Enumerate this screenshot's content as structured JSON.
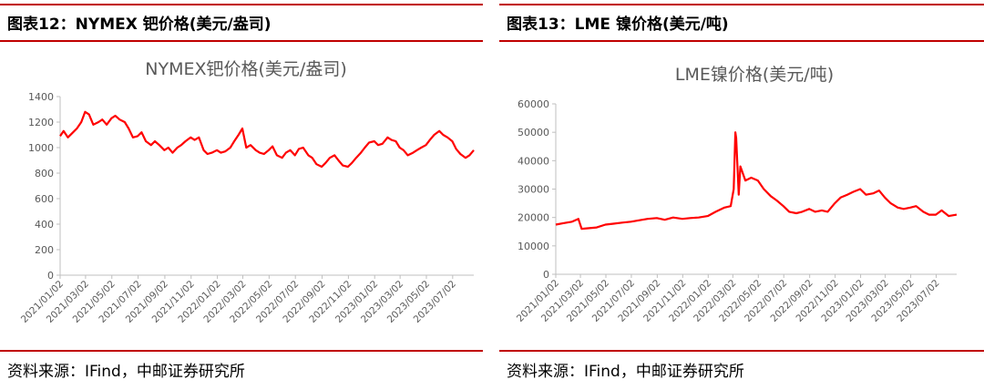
{
  "panels": [
    {
      "figure_title": "图表12：NYMEX 钯价格(美元/盎司)",
      "source": "资料来源：IFind，中邮证券研究所"
    },
    {
      "figure_title": "图表13：LME 镍价格(美元/吨)",
      "source": "资料来源：IFind，中邮证券研究所"
    }
  ],
  "chart_data": [
    {
      "type": "line",
      "title": "NYMEX钯价格(美元/盎司)",
      "color": "#ff0000",
      "ylim": [
        0,
        1400
      ],
      "yticks": [
        0,
        200,
        400,
        600,
        800,
        1000,
        1200,
        1400
      ],
      "xlim": [
        "2021-01-02",
        "2023-08-20"
      ],
      "xticks": [
        "2021/01/02",
        "2021/03/02",
        "2021/05/02",
        "2021/07/02",
        "2021/09/02",
        "2021/11/02",
        "2022/01/02",
        "2022/03/02",
        "2022/05/02",
        "2022/07/02",
        "2022/09/02",
        "2022/11/02",
        "2023/01/02",
        "2023/03/02",
        "2023/05/02",
        "2023/07/02"
      ],
      "series": [
        {
          "x": [
            "2021-01-02",
            "2021-01-10",
            "2021-01-20",
            "2021-02-01",
            "2021-02-10",
            "2021-02-20",
            "2021-03-01",
            "2021-03-10",
            "2021-03-20",
            "2021-04-01",
            "2021-04-10",
            "2021-04-20",
            "2021-05-01",
            "2021-05-10",
            "2021-05-20",
            "2021-06-01",
            "2021-06-10",
            "2021-06-20",
            "2021-07-01",
            "2021-07-10",
            "2021-07-20",
            "2021-08-01",
            "2021-08-10",
            "2021-08-20",
            "2021-09-01",
            "2021-09-10",
            "2021-09-20",
            "2021-10-01",
            "2021-10-10",
            "2021-10-20",
            "2021-11-01",
            "2021-11-10",
            "2021-11-20",
            "2021-12-01",
            "2021-12-10",
            "2021-12-20",
            "2022-01-01",
            "2022-01-10",
            "2022-01-20",
            "2022-02-01",
            "2022-02-10",
            "2022-02-20",
            "2022-03-01",
            "2022-03-10",
            "2022-03-20",
            "2022-04-01",
            "2022-04-10",
            "2022-04-20",
            "2022-05-01",
            "2022-05-10",
            "2022-05-20",
            "2022-06-01",
            "2022-06-10",
            "2022-06-20",
            "2022-07-01",
            "2022-07-10",
            "2022-07-20",
            "2022-08-01",
            "2022-08-10",
            "2022-08-20",
            "2022-09-01",
            "2022-09-10",
            "2022-09-20",
            "2022-10-01",
            "2022-10-10",
            "2022-10-20",
            "2022-11-01",
            "2022-11-10",
            "2022-11-20",
            "2022-12-01",
            "2022-12-10",
            "2022-12-20",
            "2023-01-01",
            "2023-01-10",
            "2023-01-20",
            "2023-02-01",
            "2023-02-10",
            "2023-02-20",
            "2023-03-01",
            "2023-03-10",
            "2023-03-20",
            "2023-04-01",
            "2023-04-10",
            "2023-04-20",
            "2023-05-01",
            "2023-05-10",
            "2023-05-20",
            "2023-06-01",
            "2023-06-10",
            "2023-06-20",
            "2023-07-01",
            "2023-07-10",
            "2023-07-20",
            "2023-08-01",
            "2023-08-10",
            "2023-08-20"
          ],
          "y": [
            1090,
            1130,
            1080,
            1120,
            1150,
            1200,
            1280,
            1260,
            1180,
            1200,
            1220,
            1180,
            1230,
            1250,
            1220,
            1200,
            1150,
            1080,
            1090,
            1120,
            1050,
            1020,
            1050,
            1020,
            980,
            1000,
            960,
            1000,
            1020,
            1050,
            1080,
            1060,
            1080,
            980,
            950,
            960,
            980,
            960,
            970,
            1000,
            1050,
            1100,
            1150,
            1000,
            1020,
            980,
            960,
            950,
            980,
            1010,
            940,
            920,
            960,
            980,
            940,
            990,
            1000,
            940,
            920,
            870,
            850,
            880,
            920,
            940,
            900,
            860,
            850,
            880,
            920,
            960,
            1000,
            1040,
            1050,
            1020,
            1030,
            1080,
            1060,
            1050,
            1000,
            980,
            940,
            960,
            980,
            1000,
            1020,
            1060,
            1100,
            1130,
            1100,
            1080,
            1050,
            990,
            950,
            920,
            940,
            980
          ]
        }
      ]
    },
    {
      "type": "line",
      "title": "LME镍价格(美元/吨)",
      "color": "#ff0000",
      "ylim": [
        0,
        60000
      ],
      "yticks": [
        0,
        10000,
        20000,
        30000,
        40000,
        50000,
        60000
      ],
      "xlim": [
        "2021-01-02",
        "2023-08-20"
      ],
      "xticks": [
        "2021/01/02",
        "2021/03/02",
        "2021/05/02",
        "2021/07/02",
        "2021/09/02",
        "2021/11/02",
        "2022/01/02",
        "2022/03/02",
        "2022/05/02",
        "2022/07/02",
        "2022/09/02",
        "2022/11/02",
        "2023/01/02",
        "2023/03/02",
        "2023/05/02",
        "2023/07/02"
      ],
      "series": [
        {
          "x": [
            "2021-01-02",
            "2021-01-20",
            "2021-02-10",
            "2021-02-25",
            "2021-03-05",
            "2021-03-20",
            "2021-04-10",
            "2021-05-01",
            "2021-05-20",
            "2021-06-10",
            "2021-07-01",
            "2021-07-20",
            "2021-08-10",
            "2021-09-01",
            "2021-09-20",
            "2021-10-10",
            "2021-11-01",
            "2021-11-20",
            "2021-12-10",
            "2022-01-01",
            "2022-01-20",
            "2022-02-10",
            "2022-02-25",
            "2022-03-04",
            "2022-03-08",
            "2022-03-10",
            "2022-03-16",
            "2022-03-20",
            "2022-04-01",
            "2022-04-15",
            "2022-05-01",
            "2022-05-15",
            "2022-06-01",
            "2022-06-15",
            "2022-07-01",
            "2022-07-15",
            "2022-08-01",
            "2022-08-15",
            "2022-09-01",
            "2022-09-15",
            "2022-10-01",
            "2022-10-15",
            "2022-11-01",
            "2022-11-15",
            "2022-12-01",
            "2022-12-15",
            "2023-01-01",
            "2023-01-15",
            "2023-02-01",
            "2023-02-15",
            "2023-03-01",
            "2023-03-15",
            "2023-04-01",
            "2023-04-15",
            "2023-05-01",
            "2023-05-15",
            "2023-06-01",
            "2023-06-15",
            "2023-07-01",
            "2023-07-15",
            "2023-08-01",
            "2023-08-20"
          ],
          "y": [
            17500,
            18000,
            18500,
            19500,
            16000,
            16200,
            16500,
            17500,
            17800,
            18200,
            18500,
            19000,
            19500,
            19800,
            19200,
            20000,
            19500,
            19800,
            20000,
            20500,
            22000,
            23500,
            24000,
            30000,
            50000,
            48000,
            28000,
            38000,
            33000,
            34000,
            33000,
            30000,
            27500,
            26000,
            24000,
            22000,
            21500,
            22000,
            23000,
            22000,
            22500,
            22000,
            25000,
            27000,
            28000,
            29000,
            30000,
            28000,
            28500,
            29500,
            27000,
            25000,
            23500,
            23000,
            23500,
            24000,
            22000,
            21000,
            21000,
            22500,
            20500,
            21000
          ]
        }
      ]
    }
  ]
}
